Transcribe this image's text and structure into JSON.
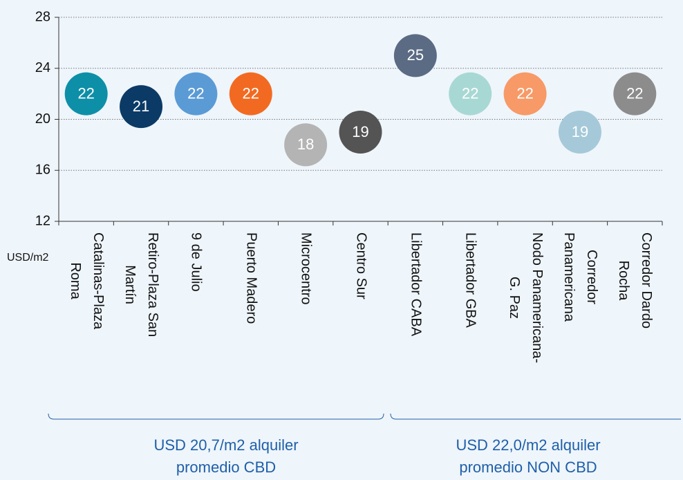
{
  "chart_data": {
    "type": "dot",
    "categories": [
      "Catalinas-Plaza\nRoma",
      "Retiro-Plaza San\nMartín",
      "9 de Julio",
      "Puerto Madero",
      "Microcentro",
      "Centro Sur",
      "Libertador CABA",
      "Libertador GBA",
      "Nodo Panamericana-\nG. Paz",
      "Corredor\nPanamericana",
      "Corredor Dardo\nRocha"
    ],
    "values": [
      22,
      21,
      22,
      22,
      18,
      19,
      25,
      22,
      22,
      19,
      22
    ],
    "colors": [
      "#0e8fa8",
      "#0b3a66",
      "#5b9bd5",
      "#f26a21",
      "#b4b4b4",
      "#545454",
      "#5c6b84",
      "#a8d8d4",
      "#f79a67",
      "#a5c9d8",
      "#8c8c8c"
    ],
    "ylabel": "USD/m2",
    "ylim": [
      12,
      28
    ],
    "yticks": [
      12,
      16,
      20,
      24,
      28
    ],
    "grid": true,
    "annotations": [
      "USD 20,7/m2 alquiler\npromedio CBD",
      "USD 22,0/m2 alquiler\npromedio NON CBD"
    ]
  }
}
